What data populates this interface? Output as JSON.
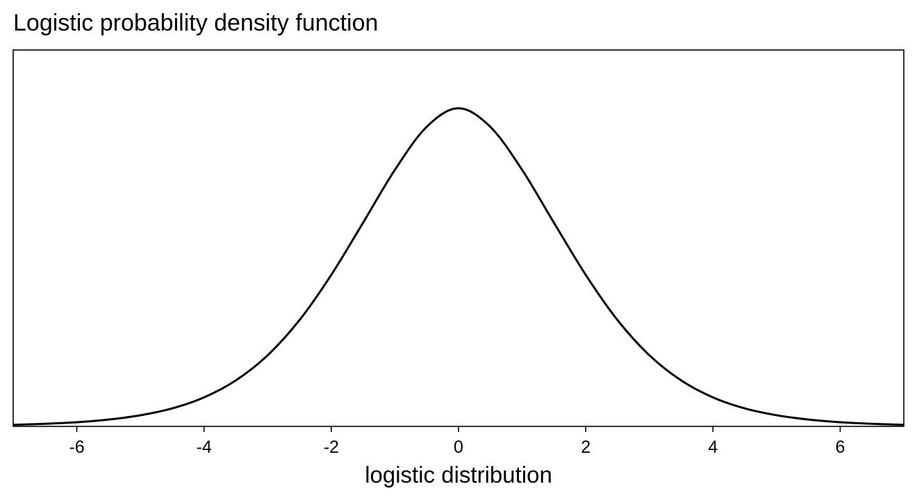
{
  "chart_data": {
    "type": "line",
    "title": "Logistic probability density function",
    "xlabel": "logistic distribution",
    "ylabel": "",
    "xlim": [
      -7,
      7
    ],
    "ylim": [
      0,
      0.2635
    ],
    "y_axis_visible": false,
    "grid": false,
    "legend": "none",
    "x_ticks": [
      -6,
      -4,
      -2,
      0,
      2,
      4,
      6
    ],
    "series": [
      {
        "color": "#000000",
        "x": [
          -7,
          -6.5,
          -6,
          -5.5,
          -5,
          -4.5,
          -4,
          -3.5,
          -3,
          -2.5,
          -2,
          -1.5,
          -1,
          -0.5,
          0,
          0.5,
          1,
          1.5,
          2,
          2.5,
          3,
          3.5,
          4,
          4.5,
          5,
          5.5,
          6,
          6.5,
          7
        ],
        "y": [
          0.0011,
          0.0018,
          0.0029,
          0.0048,
          0.0078,
          0.0126,
          0.0203,
          0.0322,
          0.0498,
          0.0744,
          0.1061,
          0.1426,
          0.1796,
          0.2097,
          0.2227,
          0.2097,
          0.1796,
          0.1426,
          0.1061,
          0.0744,
          0.0498,
          0.0322,
          0.0203,
          0.0126,
          0.0078,
          0.0048,
          0.0029,
          0.0018,
          0.0011
        ]
      }
    ]
  }
}
